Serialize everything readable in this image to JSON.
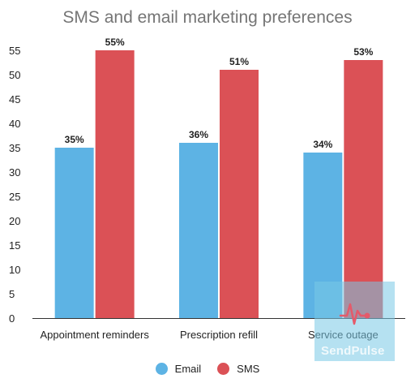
{
  "chart_data": {
    "type": "bar",
    "title": "SMS and email marketing preferences",
    "categories": [
      "Appointment reminders",
      "Prescription refill",
      "Service outage"
    ],
    "series": [
      {
        "name": "Email",
        "values": [
          35,
          36,
          34
        ],
        "labels": [
          "35%",
          "36%",
          "34%"
        ],
        "color": "#5DB3E4"
      },
      {
        "name": "SMS",
        "values": [
          55,
          51,
          53
        ],
        "labels": [
          "55%",
          "51%",
          "53%"
        ],
        "color": "#DB5156"
      }
    ],
    "ylim": [
      0,
      55
    ],
    "yticks": [
      "0",
      "5",
      "10",
      "15",
      "20",
      "25",
      "30",
      "35",
      "40",
      "45",
      "50",
      "55"
    ],
    "grid": false,
    "legend_position": "bottom"
  },
  "watermark": {
    "brand": "SendPulse",
    "color": "#7DCBE6"
  }
}
